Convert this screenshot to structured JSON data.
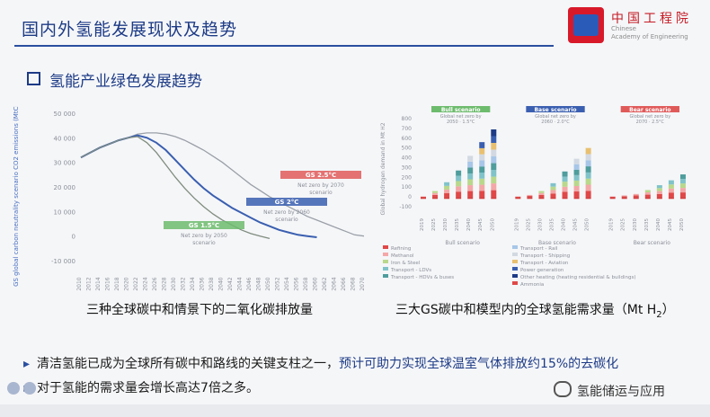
{
  "header": {
    "title": "国内外氢能发展现状及趋势"
  },
  "logo": {
    "cn": "中国工程院",
    "en_line1": "Chinese",
    "en_line2": "Academy of Engineering"
  },
  "section": {
    "subtitle": "氢能产业绿色发展趋势"
  },
  "colors": {
    "accent": "#1d3b86",
    "red_scenario": "#e05a5a",
    "blue_scenario": "#3a5fb0",
    "green_scenario": "#6dbb6d"
  },
  "chart_data": [
    {
      "type": "line",
      "title": "三种全球碳中和情景下的二氧化碳排放量",
      "ylabel": "GS global carbon neutrality scenario CO2 emissions (MtCO2eq)",
      "yticks": [
        "50 000",
        "40 000",
        "30 000",
        "20 000",
        "10 000",
        "0",
        "-10 000"
      ],
      "ylim": [
        -10000,
        50000
      ],
      "x": [
        2010,
        2012,
        2014,
        2016,
        2018,
        2020,
        2022,
        2024,
        2026,
        2028,
        2030,
        2032,
        2034,
        2036,
        2038,
        2040,
        2042,
        2044,
        2046,
        2048,
        2050,
        2052,
        2054,
        2056,
        2058,
        2060,
        2062,
        2064,
        2066,
        2068,
        2070
      ],
      "xticks": [
        "2010",
        "2012",
        "2014",
        "2016",
        "2018",
        "2020",
        "2022",
        "2024",
        "2026",
        "2028",
        "2030",
        "2032",
        "2034",
        "2036",
        "2038",
        "2040",
        "2042",
        "2044",
        "2046",
        "2048",
        "2050",
        "2052",
        "2054",
        "2056",
        "2058",
        "2060",
        "2062",
        "2064",
        "2066",
        "2068",
        "2070"
      ],
      "series": [
        {
          "name": "GS 2.5°C",
          "note": "Net zero by 2070",
          "color": "#9aa0a8",
          "values": [
            32000,
            34000,
            36000,
            37500,
            39000,
            40000,
            41500,
            42000,
            42000,
            41500,
            40500,
            39000,
            37000,
            35000,
            32500,
            30000,
            27000,
            24000,
            21000,
            18500,
            16000,
            14000,
            12000,
            10000,
            8000,
            6500,
            5000,
            3500,
            2000,
            500,
            0
          ]
        },
        {
          "name": "GS 2°C",
          "note": "Net zero by 2060",
          "color": "#3a5fb0",
          "values": [
            32000,
            34000,
            36000,
            37500,
            39000,
            40000,
            41000,
            40000,
            38000,
            35000,
            31000,
            27000,
            23000,
            19500,
            16500,
            14000,
            11500,
            9500,
            7500,
            5500,
            4000,
            2500,
            1500,
            500,
            0,
            -500,
            null,
            null,
            null,
            null,
            null
          ]
        },
        {
          "name": "GS 1.5°C",
          "note": "Net zero by 2050",
          "color": "#7f8c7f",
          "values": [
            32000,
            34000,
            36000,
            37500,
            39000,
            40000,
            40500,
            38000,
            34000,
            29000,
            24000,
            19500,
            15500,
            12000,
            9000,
            6500,
            4500,
            2500,
            1000,
            0,
            -1000,
            null,
            null,
            null,
            null,
            null,
            null,
            null,
            null,
            null,
            null
          ]
        }
      ],
      "annotations": [
        {
          "label": "GS 2.5°C",
          "note": "Net zero by 2070",
          "sub": "scenario",
          "color": "#e05a5a"
        },
        {
          "label": "GS 2°C",
          "note": "Net zero by 2060",
          "sub": "scenario",
          "color": "#3a5fb0"
        },
        {
          "label": "GS 1.5°C",
          "note": "Net zero by 2050",
          "sub": "scenario",
          "color": "#6dbb6d"
        }
      ]
    },
    {
      "type": "bar",
      "title": "三大GS碳中和模型内的全球氢能需求量（Mt H₂）",
      "ylabel": "Global hydrogen demand in Mt H2",
      "yticks": [
        "800",
        "700",
        "600",
        "500",
        "400",
        "300",
        "200",
        "100",
        "0",
        "-100"
      ],
      "ylim": [
        -100,
        800
      ],
      "groups": [
        {
          "name": "Bull scenario",
          "header": "Bull scenario",
          "sub1": "Global net zero by",
          "sub2": "2050 · 1.5°C",
          "color": "#6dbb6d",
          "categories": [
            "2019",
            "2025",
            "2030",
            "2035",
            "2040",
            "2045",
            "2050"
          ],
          "values": [
            5,
            60,
            150,
            270,
            420,
            560,
            690
          ]
        },
        {
          "name": "Base scenario",
          "header": "Base scenario",
          "sub1": "Global net zero by",
          "sub2": "2060 · 2.0°C",
          "color": "#3a5fb0",
          "categories": [
            "2019",
            "2025",
            "2030",
            "2035",
            "2040",
            "2045",
            "2050"
          ],
          "values": [
            5,
            20,
            60,
            140,
            260,
            390,
            500
          ]
        },
        {
          "name": "Bear scenario",
          "header": "Bear scenario",
          "sub1": "Global net zero by",
          "sub2": "2070 · 2.5°C",
          "color": "#e05a5a",
          "categories": [
            "2019",
            "2025",
            "2030",
            "2035",
            "2040",
            "2045",
            "2050"
          ],
          "values": [
            5,
            15,
            30,
            70,
            120,
            170,
            230
          ]
        }
      ],
      "legend": [
        "Refining",
        "Methanol",
        "Iron & Steel",
        "Transport - LDVs",
        "Transport - HDVs & buses",
        "Transport - Rail",
        "Transport - Shipping",
        "Transport - Aviation",
        "Power generation",
        "Other heating (heating residential & buildings)",
        "Ammonia"
      ]
    }
  ],
  "captions": {
    "left": "三种全球碳中和情景下的二氧化碳排放量",
    "right": "三大GS碳中和模型内的全球氢能需求量（Mt H",
    "right_sub": "2",
    "right_end": "）"
  },
  "bullets": {
    "line1_a": "清洁氢能已成为全球所有碳中和路线的关键支柱之一，",
    "line1_b": "预计可助力实现全球温室气体排放约15%的去碳化",
    "line2": "对于氢能的需求量会增长高达7倍之多。"
  },
  "watermark": {
    "text": "氢能储运与应用"
  }
}
